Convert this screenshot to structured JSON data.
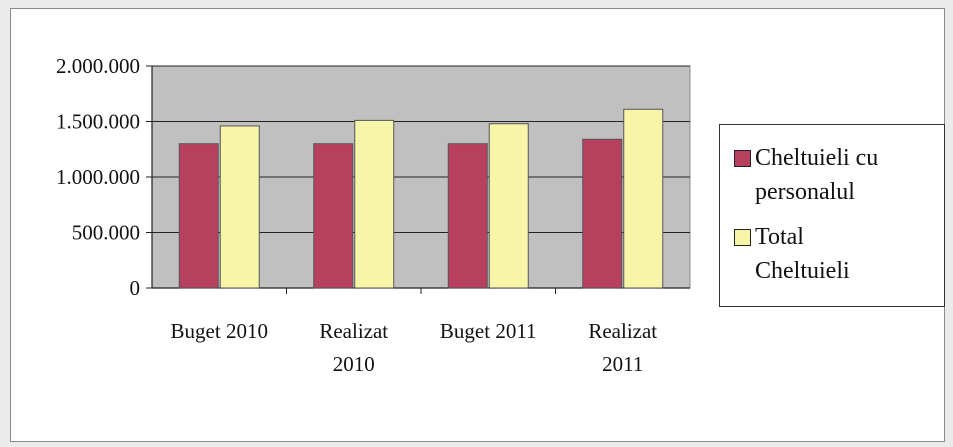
{
  "chart_data": {
    "type": "bar",
    "categories": [
      [
        "Buget 2010"
      ],
      [
        "Realizat",
        "2010"
      ],
      [
        "Buget 2011"
      ],
      [
        "Realizat",
        "2011"
      ]
    ],
    "series": [
      {
        "name": "Cheltuieli cu personalul",
        "color": "#b8405f",
        "values": [
          1300000,
          1300000,
          1300000,
          1340000
        ]
      },
      {
        "name": "Total Cheltuieli",
        "color": "#f7f5a8",
        "values": [
          1460000,
          1510000,
          1480000,
          1610000
        ]
      }
    ],
    "ylim": [
      0,
      2000000
    ],
    "y_ticks": [
      {
        "value": 0,
        "label": "0"
      },
      {
        "value": 500000,
        "label": "500.000"
      },
      {
        "value": 1000000,
        "label": "1.000.000"
      },
      {
        "value": 1500000,
        "label": "1.500.000"
      },
      {
        "value": 2000000,
        "label": "2.000.000"
      }
    ],
    "grid": true,
    "plot_background": "#c0c0c0",
    "legend_position": "right"
  },
  "legend": {
    "items": [
      {
        "lines": [
          "Cheltuieli cu",
          "personalul"
        ],
        "color": "#b8405f"
      },
      {
        "lines": [
          "Total",
          "Cheltuieli"
        ],
        "color": "#f7f5a8"
      }
    ]
  }
}
